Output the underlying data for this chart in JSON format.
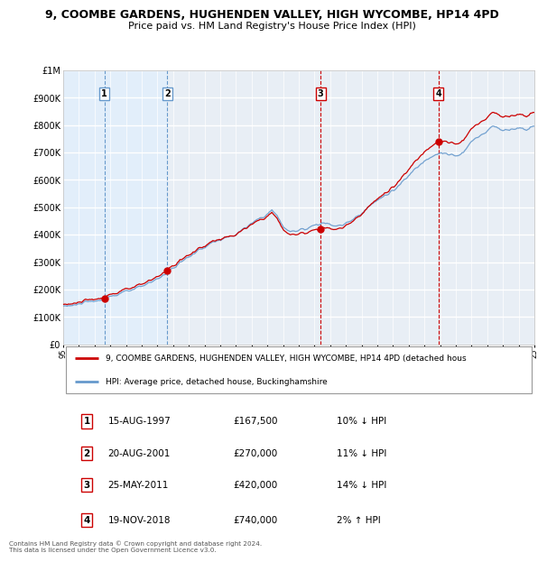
{
  "title_line1": "9, COOMBE GARDENS, HUGHENDEN VALLEY, HIGH WYCOMBE, HP14 4PD",
  "title_line2": "Price paid vs. HM Land Registry's House Price Index (HPI)",
  "x_start_year": 1995,
  "x_end_year": 2025,
  "y_min": 0,
  "y_max": 1000000,
  "y_ticks": [
    0,
    100000,
    200000,
    300000,
    400000,
    500000,
    600000,
    700000,
    800000,
    900000,
    1000000
  ],
  "y_tick_labels": [
    "£0",
    "£100K",
    "£200K",
    "£300K",
    "£400K",
    "£500K",
    "£600K",
    "£700K",
    "£800K",
    "£900K",
    "£1M"
  ],
  "sale_dates_decimal": [
    1997.62,
    2001.63,
    2011.39,
    2018.89
  ],
  "sale_prices": [
    167500,
    270000,
    420000,
    740000
  ],
  "sale_labels": [
    "1",
    "2",
    "3",
    "4"
  ],
  "sale_color": "#cc0000",
  "hpi_color": "#6699cc",
  "hpi_fill_color": "#dde8f5",
  "vline_colors": [
    "#6699cc",
    "#6699cc",
    "#cc0000",
    "#cc0000"
  ],
  "vline_styles": [
    "--",
    "--",
    "--",
    "--"
  ],
  "shade_regions": [
    [
      1995.0,
      2001.63
    ]
  ],
  "shade_color": "#ddeeff",
  "grid_color": "#ffffff",
  "plot_bg_color": "#e8eef5",
  "legend_entries": [
    "9, COOMBE GARDENS, HUGHENDEN VALLEY, HIGH WYCOMBE, HP14 4PD (detached hous",
    "HPI: Average price, detached house, Buckinghamshire"
  ],
  "table_rows": [
    [
      "1",
      "15-AUG-1997",
      "£167,500",
      "10% ↓ HPI"
    ],
    [
      "2",
      "20-AUG-2001",
      "£270,000",
      "11% ↓ HPI"
    ],
    [
      "3",
      "25-MAY-2011",
      "£420,000",
      "14% ↓ HPI"
    ],
    [
      "4",
      "19-NOV-2018",
      "£740,000",
      "2% ↑ HPI"
    ]
  ],
  "footnote": "Contains HM Land Registry data © Crown copyright and database right 2024.\nThis data is licensed under the Open Government Licence v3.0."
}
